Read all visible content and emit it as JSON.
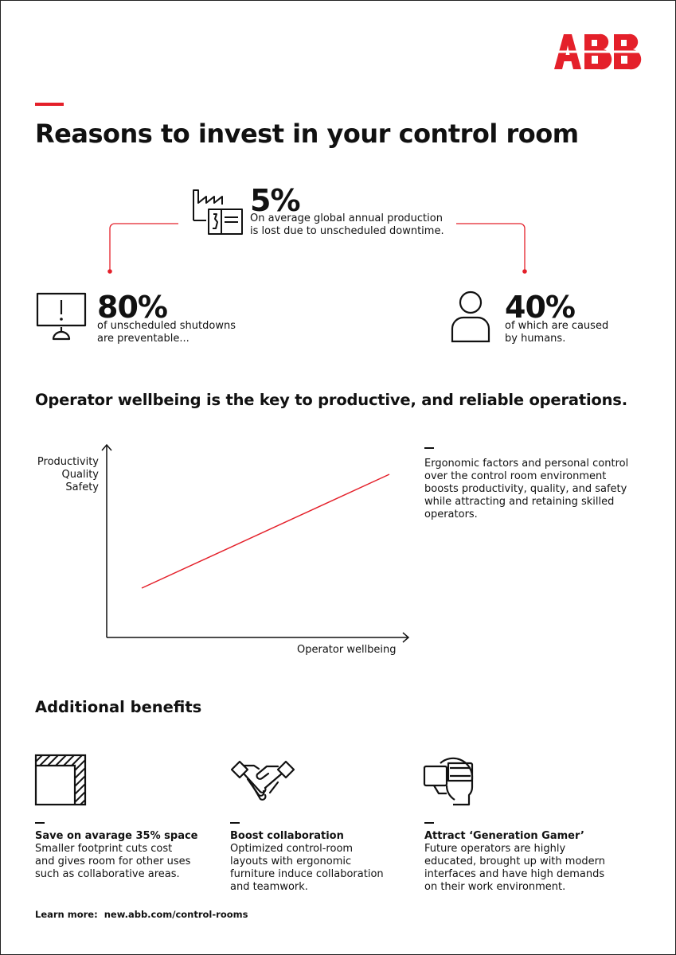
{
  "brand": {
    "logo_text": "ABB",
    "accent_color": "#e4202a"
  },
  "title": "Reasons to invest in your control room",
  "stats": {
    "top": {
      "icon": "factory-control-panel-icon",
      "value": "5%",
      "line1": "On average global annual production",
      "line2": "is lost due to unscheduled downtime."
    },
    "left": {
      "icon": "monitor-alert-icon",
      "value": "80%",
      "line1": "of unscheduled shutdowns",
      "line2": "are preventable..."
    },
    "right": {
      "icon": "person-icon",
      "value": "40%",
      "line1": "of which are caused",
      "line2": "by humans."
    }
  },
  "wellbeing": {
    "heading": "Operator wellbeing is the key to productive, and reliable operations.",
    "y_labels": [
      "Productivity",
      "Quality",
      "Safety"
    ],
    "x_label": "Operator wellbeing",
    "description": "Ergonomic factors and personal control over the control room environment boosts productivity, quality, and safety while attracting and retaining skilled operators."
  },
  "benefits": {
    "heading": "Additional benefits",
    "items": [
      {
        "icon": "floor-space-icon",
        "title": "Save on avarage 35% space",
        "text": "Smaller footprint cuts cost and gives room for other uses such as collaborative areas."
      },
      {
        "icon": "handshake-icon",
        "title": "Boost collaboration",
        "text": "Optimized control-room layouts with ergonomic furniture induce collaboration and teamwork."
      },
      {
        "icon": "vr-headset-icon",
        "title": "Attract ‘Generation Gamer’",
        "text": "Future operators are highly educated, brought up with modern interfaces and have high demands on their work environment."
      }
    ]
  },
  "footer": {
    "label": "Learn more:",
    "link": "new.abb.com/control-rooms"
  }
}
